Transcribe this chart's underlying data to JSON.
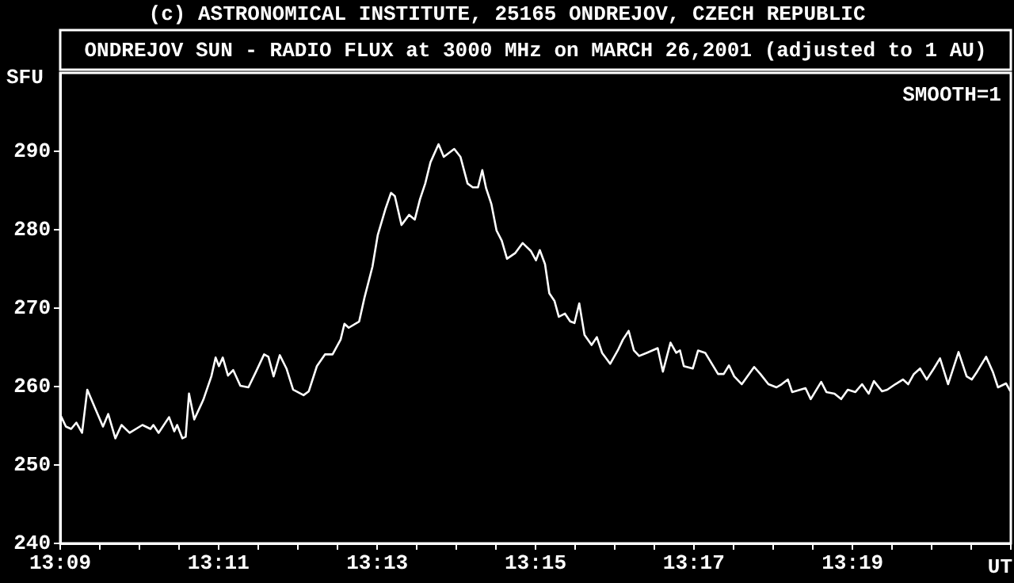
{
  "chart_data": {
    "type": "line",
    "title": "ONDREJOV SUN - RADIO FLUX at 3000 MHz on MARCH 26,2001 (adjusted to 1 AU)",
    "ylabel": "SFU",
    "xlabel": "UT",
    "annotations": [
      "(c) ASTRONOMICAL INSTITUTE, 25165 ONDREJOV, CZECH REPUBLIC",
      "SMOOTH=1"
    ],
    "xlim": [
      13.15,
      13.35
    ],
    "ylim": [
      240,
      300
    ],
    "xticks": [
      {
        "value": 13.15,
        "label": "13:09"
      },
      {
        "value": 13.1583,
        "label": null
      },
      {
        "value": 13.1667,
        "label": null
      },
      {
        "value": 13.175,
        "label": null
      },
      {
        "value": 13.1833,
        "label": "13:11"
      },
      {
        "value": 13.1917,
        "label": null
      },
      {
        "value": 13.2,
        "label": null
      },
      {
        "value": 13.2083,
        "label": null
      },
      {
        "value": 13.2167,
        "label": "13:13"
      },
      {
        "value": 13.225,
        "label": null
      },
      {
        "value": 13.2333,
        "label": null
      },
      {
        "value": 13.2417,
        "label": null
      },
      {
        "value": 13.25,
        "label": "13:15"
      },
      {
        "value": 13.2583,
        "label": null
      },
      {
        "value": 13.2667,
        "label": null
      },
      {
        "value": 13.275,
        "label": null
      },
      {
        "value": 13.2833,
        "label": "13:17"
      },
      {
        "value": 13.2917,
        "label": null
      },
      {
        "value": 13.3,
        "label": null
      },
      {
        "value": 13.3083,
        "label": null
      },
      {
        "value": 13.3167,
        "label": "13:19"
      },
      {
        "value": 13.325,
        "label": null
      },
      {
        "value": 13.3333,
        "label": null
      },
      {
        "value": 13.3417,
        "label": null
      },
      {
        "value": 13.35,
        "label": null
      }
    ],
    "yticks": [
      240,
      250,
      260,
      270,
      280,
      290
    ],
    "marker": "none",
    "x": [
      13.1501,
      13.1512,
      13.1523,
      13.1534,
      13.1546,
      13.1557,
      13.1573,
      13.159,
      13.1601,
      13.1616,
      13.1629,
      13.1646,
      13.1673,
      13.169,
      13.1696,
      13.1707,
      13.1729,
      13.174,
      13.1746,
      13.1757,
      13.1764,
      13.1771,
      13.1782,
      13.1801,
      13.1818,
      13.1827,
      13.1834,
      13.1842,
      13.1853,
      13.1864,
      13.1879,
      13.1896,
      13.1912,
      13.1929,
      13.1938,
      13.1949,
      13.1962,
      13.1976,
      13.199,
      13.2012,
      13.2023,
      13.204,
      13.2057,
      13.2073,
      13.209,
      13.2098,
      13.2107,
      13.2129,
      13.214,
      13.2157,
      13.2168,
      13.2184,
      13.2196,
      13.2204,
      13.2218,
      13.2234,
      13.2246,
      13.2257,
      13.2268,
      13.2279,
      13.2296,
      13.2307,
      13.2329,
      13.2342,
      13.2357,
      13.2368,
      13.2379,
      13.2388,
      13.2396,
      13.2407,
      13.2418,
      13.2429,
      13.244,
      13.2457,
      13.2473,
      13.249,
      13.2501,
      13.2509,
      13.252,
      13.2529,
      13.254,
      13.2549,
      13.2562,
      13.2573,
      13.2582,
      13.2592,
      13.2603,
      13.2618,
      13.2629,
      13.264,
      13.2657,
      13.2673,
      13.2684,
      13.2696,
      13.2707,
      13.2718,
      13.2734,
      13.2757,
      13.2768,
      13.2784,
      13.2796,
      13.2804,
      13.2812,
      13.2831,
      13.2842,
      13.2857,
      13.2884,
      13.2896,
      13.2907,
      13.2918,
      13.2934,
      13.296,
      13.2973,
      13.299,
      13.3007,
      13.3018,
      13.3031,
      13.304,
      13.3057,
      13.3068,
      13.3079,
      13.3101,
      13.3112,
      13.3129,
      13.3143,
      13.3157,
      13.3173,
      13.3187,
      13.3201,
      13.3212,
      13.3229,
      13.324,
      13.3257,
      13.3273,
      13.3284,
      13.3296,
      13.3309,
      13.3323,
      13.3338,
      13.3351,
      13.3368,
      13.339,
      13.3407,
      13.3418,
      13.3429,
      13.3448,
      13.3462,
      13.3473,
      13.349,
      13.3499
    ],
    "series": [
      {
        "color": "#ffffff",
        "values": [
          256.3,
          254.9,
          254.6,
          255.4,
          254.1,
          259.6,
          257.3,
          254.9,
          256.5,
          253.4,
          255.1,
          254.1,
          255.1,
          254.6,
          255.1,
          254.1,
          256.1,
          254.3,
          255.1,
          253.4,
          253.6,
          259.1,
          255.8,
          258.3,
          261.3,
          263.7,
          262.6,
          263.7,
          261.4,
          262.1,
          260.1,
          259.9,
          261.9,
          264.1,
          263.8,
          261.3,
          264.0,
          262.3,
          259.6,
          258.9,
          259.4,
          262.6,
          264.1,
          264.1,
          266.0,
          268.0,
          267.5,
          268.3,
          271.3,
          275.3,
          279.3,
          282.6,
          284.7,
          284.3,
          280.6,
          281.9,
          281.3,
          283.9,
          285.9,
          288.6,
          290.9,
          289.3,
          290.3,
          289.3,
          285.9,
          285.4,
          285.4,
          287.6,
          285.3,
          283.3,
          279.9,
          278.6,
          276.3,
          277.0,
          278.3,
          277.3,
          276.1,
          277.4,
          275.6,
          271.9,
          270.9,
          268.9,
          269.3,
          268.3,
          268.1,
          270.6,
          266.6,
          265.3,
          266.3,
          264.3,
          262.9,
          264.6,
          266.0,
          267.1,
          264.6,
          263.9,
          264.3,
          264.9,
          261.9,
          265.6,
          264.3,
          264.6,
          262.6,
          262.3,
          264.6,
          264.3,
          261.6,
          261.6,
          262.7,
          261.3,
          260.3,
          262.5,
          261.6,
          260.3,
          259.9,
          260.3,
          260.9,
          259.3,
          259.6,
          259.8,
          258.4,
          260.6,
          259.3,
          259.1,
          258.4,
          259.6,
          259.3,
          260.3,
          259.1,
          260.7,
          259.4,
          259.6,
          260.3,
          260.9,
          260.3,
          261.6,
          262.3,
          260.9,
          262.3,
          263.6,
          260.3,
          264.4,
          261.3,
          260.9,
          261.9,
          263.8,
          261.9,
          259.9,
          260.4,
          259.4
        ]
      }
    ]
  }
}
